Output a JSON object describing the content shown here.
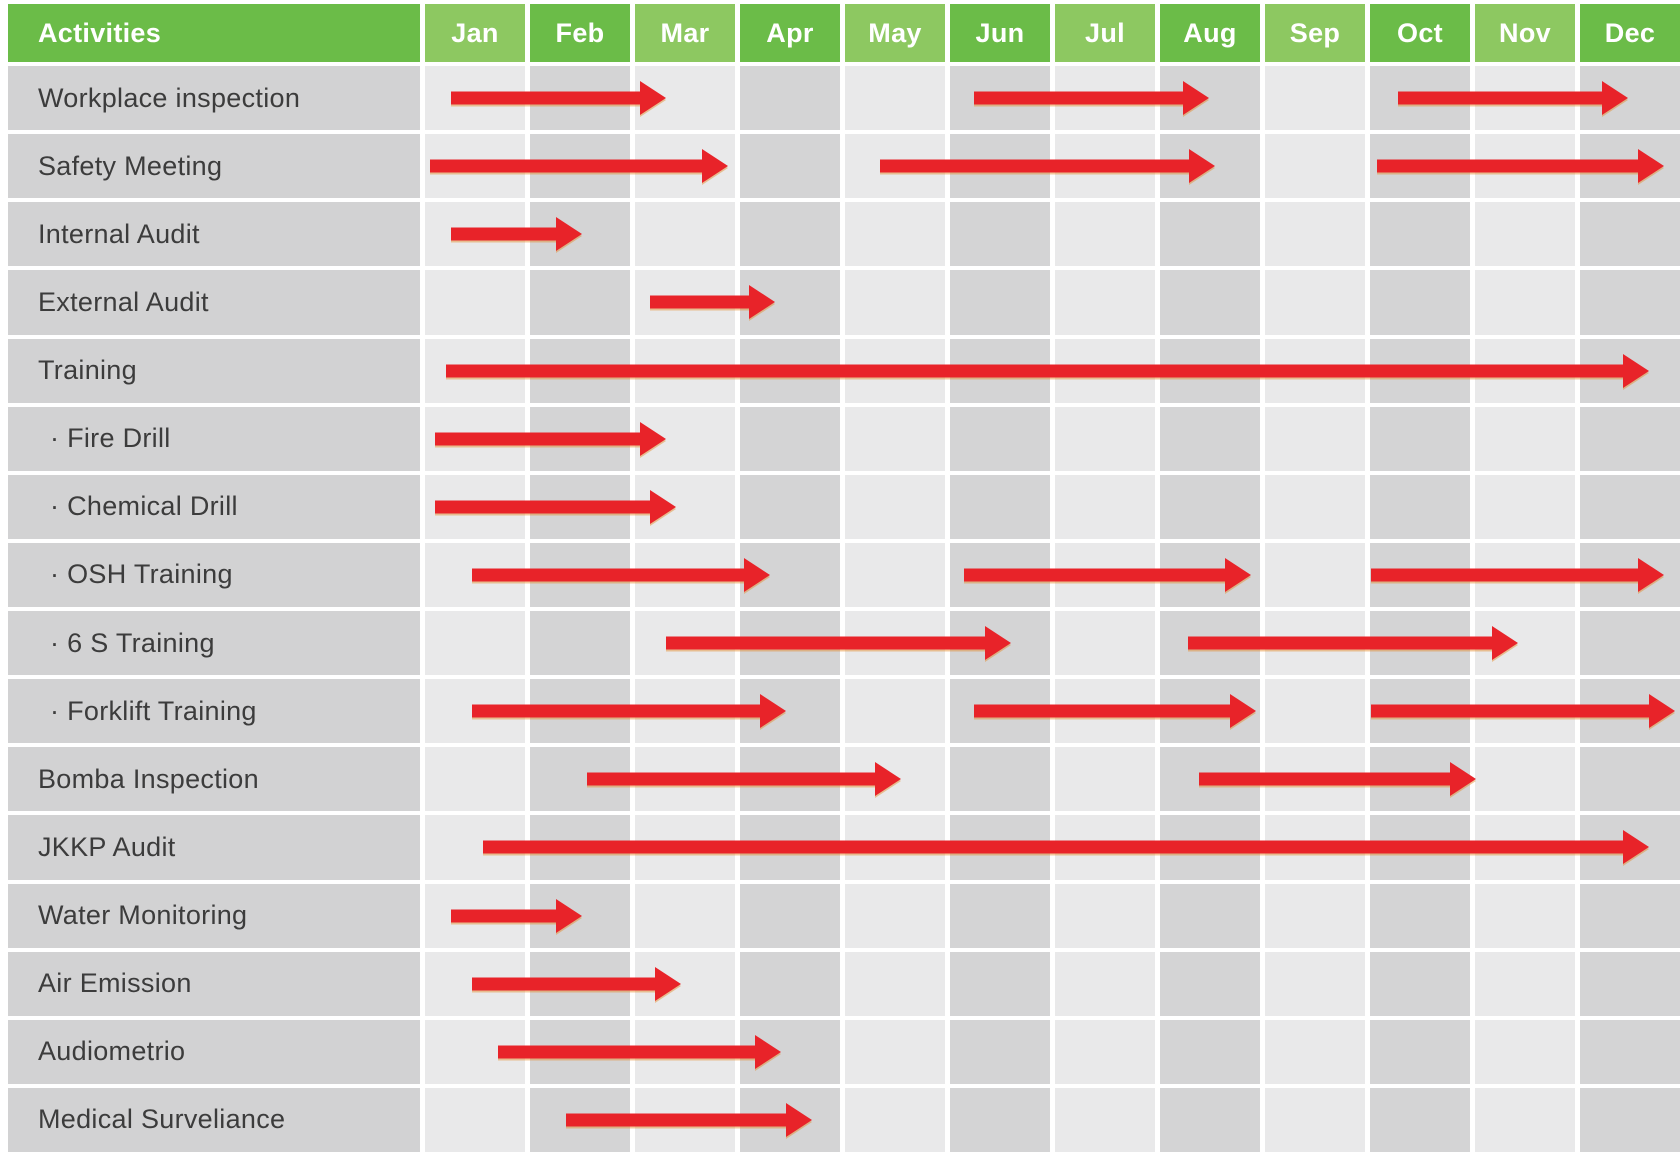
{
  "theme": {
    "green_dark": "#6bbc48",
    "green_light": "#8dc861",
    "label_cell_bg": "#d2d2d3",
    "cell_light": "#e9e9ea",
    "cell_dark": "#d4d4d5",
    "arrow_red": "#e82329",
    "header_text": "#ffffff",
    "label_text": "#3c3c3c",
    "page_bg": "#ffffff"
  },
  "chart_data": {
    "type": "gantt",
    "title": "Activities",
    "legend": "none",
    "bar_style": "red-arrow",
    "x_axis": {
      "unit": "months",
      "categories": [
        "Jan",
        "Feb",
        "Mar",
        "Apr",
        "May",
        "Jun",
        "Jul",
        "Aug",
        "Sep",
        "Oct",
        "Nov",
        "Dec"
      ],
      "range_month_units": [
        0,
        12
      ]
    },
    "activities": [
      {
        "label": "Workplace inspection",
        "spans": [
          {
            "from": 0.25,
            "to": 2.3
          },
          {
            "from": 5.25,
            "to": 7.5
          },
          {
            "from": 9.3,
            "to": 11.5
          }
        ]
      },
      {
        "label": "Safety Meeting",
        "spans": [
          {
            "from": 0.05,
            "to": 2.9
          },
          {
            "from": 4.35,
            "to": 7.55
          },
          {
            "from": 9.1,
            "to": 11.85
          }
        ]
      },
      {
        "label": "Internal Audit",
        "spans": [
          {
            "from": 0.25,
            "to": 1.5
          }
        ]
      },
      {
        "label": "External Audit",
        "spans": [
          {
            "from": 2.15,
            "to": 3.35
          }
        ]
      },
      {
        "label": "Training",
        "spans": [
          {
            "from": 0.2,
            "to": 11.7
          }
        ]
      },
      {
        "label": "· Fire Drill",
        "spans": [
          {
            "from": 0.1,
            "to": 2.3
          }
        ]
      },
      {
        "label": "· Chemical Drill",
        "spans": [
          {
            "from": 0.1,
            "to": 2.4
          }
        ]
      },
      {
        "label": "· OSH Training",
        "spans": [
          {
            "from": 0.45,
            "to": 3.3
          },
          {
            "from": 5.15,
            "to": 7.9
          },
          {
            "from": 9.05,
            "to": 11.85
          }
        ]
      },
      {
        "label": "· 6 S Training",
        "spans": [
          {
            "from": 2.3,
            "to": 5.6
          },
          {
            "from": 7.3,
            "to": 10.45
          }
        ]
      },
      {
        "label": "· Forklift Training",
        "spans": [
          {
            "from": 0.45,
            "to": 3.45
          },
          {
            "from": 5.25,
            "to": 7.95
          },
          {
            "from": 9.05,
            "to": 11.95
          }
        ]
      },
      {
        "label": "Bomba Inspection",
        "spans": [
          {
            "from": 1.55,
            "to": 4.55
          },
          {
            "from": 7.4,
            "to": 10.05
          }
        ]
      },
      {
        "label": "JKKP Audit",
        "spans": [
          {
            "from": 0.55,
            "to": 11.7
          }
        ]
      },
      {
        "label": "Water Monitoring",
        "spans": [
          {
            "from": 0.25,
            "to": 1.5
          }
        ]
      },
      {
        "label": "Air Emission",
        "spans": [
          {
            "from": 0.45,
            "to": 2.45
          }
        ]
      },
      {
        "label": "Audiometrio",
        "spans": [
          {
            "from": 0.7,
            "to": 3.4
          }
        ]
      },
      {
        "label": "Medical Surveliance",
        "spans": [
          {
            "from": 1.35,
            "to": 3.7
          }
        ]
      }
    ]
  }
}
